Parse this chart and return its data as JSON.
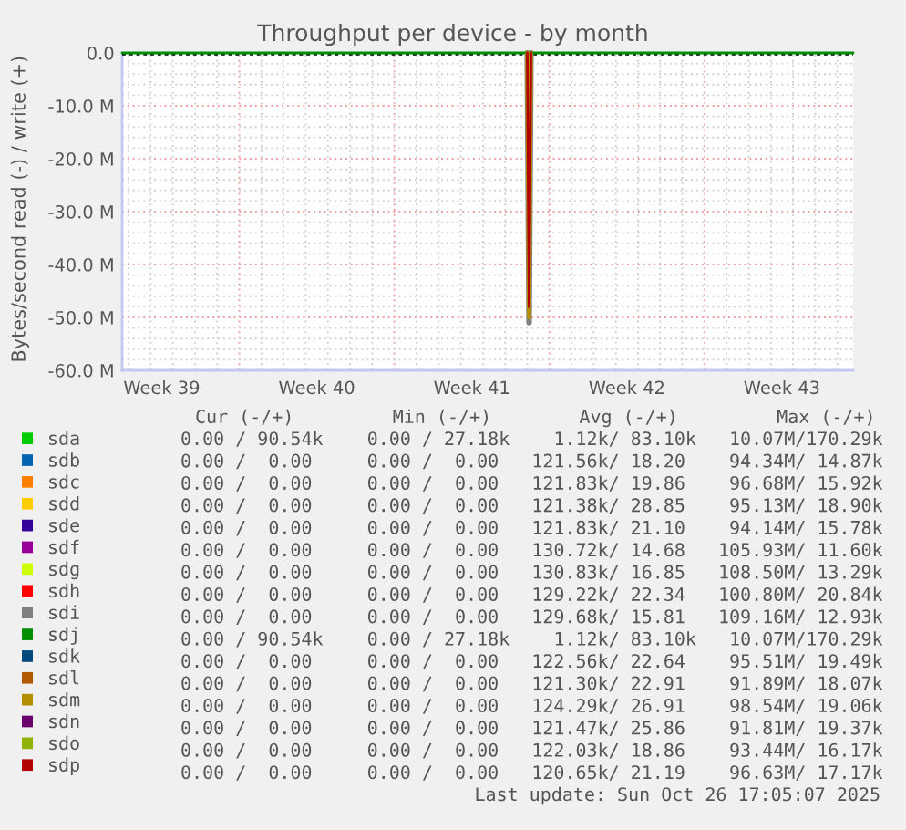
{
  "chart_data": {
    "type": "line",
    "title": "Throughput per device - by month",
    "ylabel": "Bytes/second read (-) / write (+)",
    "x": [
      "2025-09-23T17:05",
      "2025-10-12T00:00",
      "2025-10-12T02:00",
      "2025-10-12T04:00",
      "2025-10-26T17:05"
    ],
    "series": [
      {
        "name": "sda",
        "color": "#00cc00",
        "values": [
          null,
          null,
          null,
          null,
          null
        ]
      },
      {
        "name": "sdb",
        "color": "#0066b3",
        "values": [
          null,
          null,
          null,
          null,
          null
        ]
      },
      {
        "name": "sdc",
        "color": "#ff8000",
        "values": [
          null,
          null,
          null,
          null,
          null
        ]
      },
      {
        "name": "sdd",
        "color": "#ffcc00",
        "values": [
          null,
          null,
          null,
          null,
          null
        ]
      },
      {
        "name": "sde",
        "color": "#330099",
        "values": [
          null,
          null,
          null,
          null,
          null
        ]
      },
      {
        "name": "sdf",
        "color": "#990099",
        "values": [
          null,
          null,
          null,
          null,
          null
        ]
      },
      {
        "name": "sdg",
        "color": "#ccff00",
        "values": [
          null,
          null,
          null,
          null,
          null
        ]
      },
      {
        "name": "sdh",
        "color": "#ff0000",
        "values": [
          null,
          null,
          null,
          null,
          null
        ]
      },
      {
        "name": "sdi",
        "color": "#808080",
        "values": [
          null,
          0,
          -51,
          0,
          null
        ]
      },
      {
        "name": "sdj",
        "color": "#008f00",
        "values": [
          0,
          0,
          null,
          0,
          0
        ]
      },
      {
        "name": "sdk",
        "color": "#00487d",
        "values": [
          null,
          null,
          null,
          null,
          null
        ]
      },
      {
        "name": "sdl",
        "color": "#b35a00",
        "values": [
          null,
          null,
          null,
          null,
          null
        ]
      },
      {
        "name": "sdm",
        "color": "#b38f00",
        "values": [
          null,
          0,
          -50,
          0,
          null
        ]
      },
      {
        "name": "sdn",
        "color": "#6b006b",
        "values": [
          null,
          null,
          null,
          null,
          null
        ]
      },
      {
        "name": "sdo",
        "color": "#8fb300",
        "values": [
          null,
          null,
          null,
          null,
          null
        ]
      },
      {
        "name": "sdp",
        "color": "#b30000",
        "values": [
          null,
          0,
          -48,
          0,
          null
        ]
      }
    ],
    "xlim": [
      "2025-09-23T17:05",
      "2025-10-26T17:05"
    ],
    "xticks": [
      {
        "value": "2025-09-25T12:00",
        "label": "Week 39"
      },
      {
        "value": "2025-10-02T12:00",
        "label": "Week 40"
      },
      {
        "value": "2025-10-09T12:00",
        "label": "Week 41"
      },
      {
        "value": "2025-10-16T12:00",
        "label": "Week 42"
      },
      {
        "value": "2025-10-23T12:00",
        "label": "Week 43"
      },
      {
        "value": "2025-09-24",
        "label": null
      },
      {
        "value": "2025-09-25",
        "label": null
      },
      {
        "value": "2025-09-26",
        "label": null
      },
      {
        "value": "2025-09-27",
        "label": null
      },
      {
        "value": "2025-09-28",
        "label": null
      },
      {
        "value": "2025-09-29",
        "label": null
      },
      {
        "value": "2025-09-30",
        "label": null
      },
      {
        "value": "2025-10-01",
        "label": null
      },
      {
        "value": "2025-10-02",
        "label": null
      },
      {
        "value": "2025-10-03",
        "label": null
      },
      {
        "value": "2025-10-04",
        "label": null
      },
      {
        "value": "2025-10-05",
        "label": null
      },
      {
        "value": "2025-10-06",
        "label": null
      },
      {
        "value": "2025-10-07",
        "label": null
      },
      {
        "value": "2025-10-08",
        "label": null
      },
      {
        "value": "2025-10-09",
        "label": null
      },
      {
        "value": "2025-10-10",
        "label": null
      },
      {
        "value": "2025-10-11",
        "label": null
      },
      {
        "value": "2025-10-12",
        "label": null
      },
      {
        "value": "2025-10-13",
        "label": null
      },
      {
        "value": "2025-10-14",
        "label": null
      },
      {
        "value": "2025-10-15",
        "label": null
      },
      {
        "value": "2025-10-16",
        "label": null
      },
      {
        "value": "2025-10-17",
        "label": null
      },
      {
        "value": "2025-10-18",
        "label": null
      },
      {
        "value": "2025-10-19",
        "label": null
      },
      {
        "value": "2025-10-20",
        "label": null
      },
      {
        "value": "2025-10-21",
        "label": null
      },
      {
        "value": "2025-10-22",
        "label": null
      },
      {
        "value": "2025-10-23",
        "label": null
      },
      {
        "value": "2025-10-24",
        "label": null
      },
      {
        "value": "2025-10-25",
        "label": null
      },
      {
        "value": "2025-10-26",
        "label": null
      }
    ],
    "ylim": [
      -60,
      0
    ],
    "yticks": [
      {
        "value": 0,
        "label": "0.0"
      },
      {
        "value": -10,
        "label": "-10.0 M"
      },
      {
        "value": -20,
        "label": "-20.0 M"
      },
      {
        "value": -30,
        "label": "-30.0 M"
      },
      {
        "value": -40,
        "label": "-40.0 M"
      },
      {
        "value": -50,
        "label": "-50.0 M"
      },
      {
        "value": -60,
        "label": "-60.0 M"
      },
      {
        "value": -2,
        "label": null
      },
      {
        "value": -4,
        "label": null
      },
      {
        "value": -6,
        "label": null
      },
      {
        "value": -8,
        "label": null
      },
      {
        "value": -12,
        "label": null
      },
      {
        "value": -14,
        "label": null
      },
      {
        "value": -16,
        "label": null
      },
      {
        "value": -18,
        "label": null
      },
      {
        "value": -22,
        "label": null
      },
      {
        "value": -24,
        "label": null
      },
      {
        "value": -26,
        "label": null
      },
      {
        "value": -28,
        "label": null
      },
      {
        "value": -32,
        "label": null
      },
      {
        "value": -34,
        "label": null
      },
      {
        "value": -36,
        "label": null
      },
      {
        "value": -38,
        "label": null
      },
      {
        "value": -42,
        "label": null
      },
      {
        "value": -44,
        "label": null
      },
      {
        "value": -46,
        "label": null
      },
      {
        "value": -48,
        "label": null
      },
      {
        "value": -52,
        "label": null
      },
      {
        "value": -54,
        "label": null
      },
      {
        "value": -56,
        "label": null
      },
      {
        "value": -58,
        "label": null
      }
    ],
    "grid": true,
    "legend": "bottom",
    "ref_lines": [
      {
        "axis": "y",
        "value": 0,
        "color": "#000000",
        "line_style": "dotted"
      }
    ],
    "annotations": [
      "Cur (-/+)         Min (-/+)        Avg (-/+)         Max (-/+)",
      "0.00 / 90.54k    0.00 / 27.18k    1.12k/ 83.10k   10.07M/170.29k",
      "0.00 /  0.00     0.00 /  0.00   121.56k/ 18.20    94.34M/ 14.87k",
      "0.00 /  0.00     0.00 /  0.00   121.83k/ 19.86    96.68M/ 15.92k",
      "0.00 /  0.00     0.00 /  0.00   121.38k/ 28.85    95.13M/ 18.90k",
      "0.00 /  0.00     0.00 /  0.00   121.83k/ 21.10    94.14M/ 15.78k",
      "0.00 /  0.00     0.00 /  0.00   130.72k/ 14.68   105.93M/ 11.60k",
      "0.00 /  0.00     0.00 /  0.00   130.83k/ 16.85   108.50M/ 13.29k",
      "0.00 /  0.00     0.00 /  0.00   129.22k/ 22.34   100.80M/ 20.84k",
      "0.00 /  0.00     0.00 /  0.00   129.68k/ 15.81   109.16M/ 12.93k",
      "0.00 / 90.54k    0.00 / 27.18k    1.12k/ 83.10k   10.07M/170.29k",
      "0.00 /  0.00     0.00 /  0.00   122.56k/ 22.64    95.51M/ 19.49k",
      "0.00 /  0.00     0.00 /  0.00   121.30k/ 22.91    91.89M/ 18.07k",
      "0.00 /  0.00     0.00 /  0.00   124.29k/ 26.91    98.54M/ 19.06k",
      "0.00 /  0.00     0.00 /  0.00   121.47k/ 25.86    91.81M/ 19.37k",
      "0.00 /  0.00     0.00 /  0.00   122.03k/ 18.86    93.44M/ 16.17k",
      "0.00 /  0.00     0.00 /  0.00   120.65k/ 21.19    96.63M/ 17.17k",
      "Last update: Sun Oct 26 17:05:07 2025"
    ]
  }
}
